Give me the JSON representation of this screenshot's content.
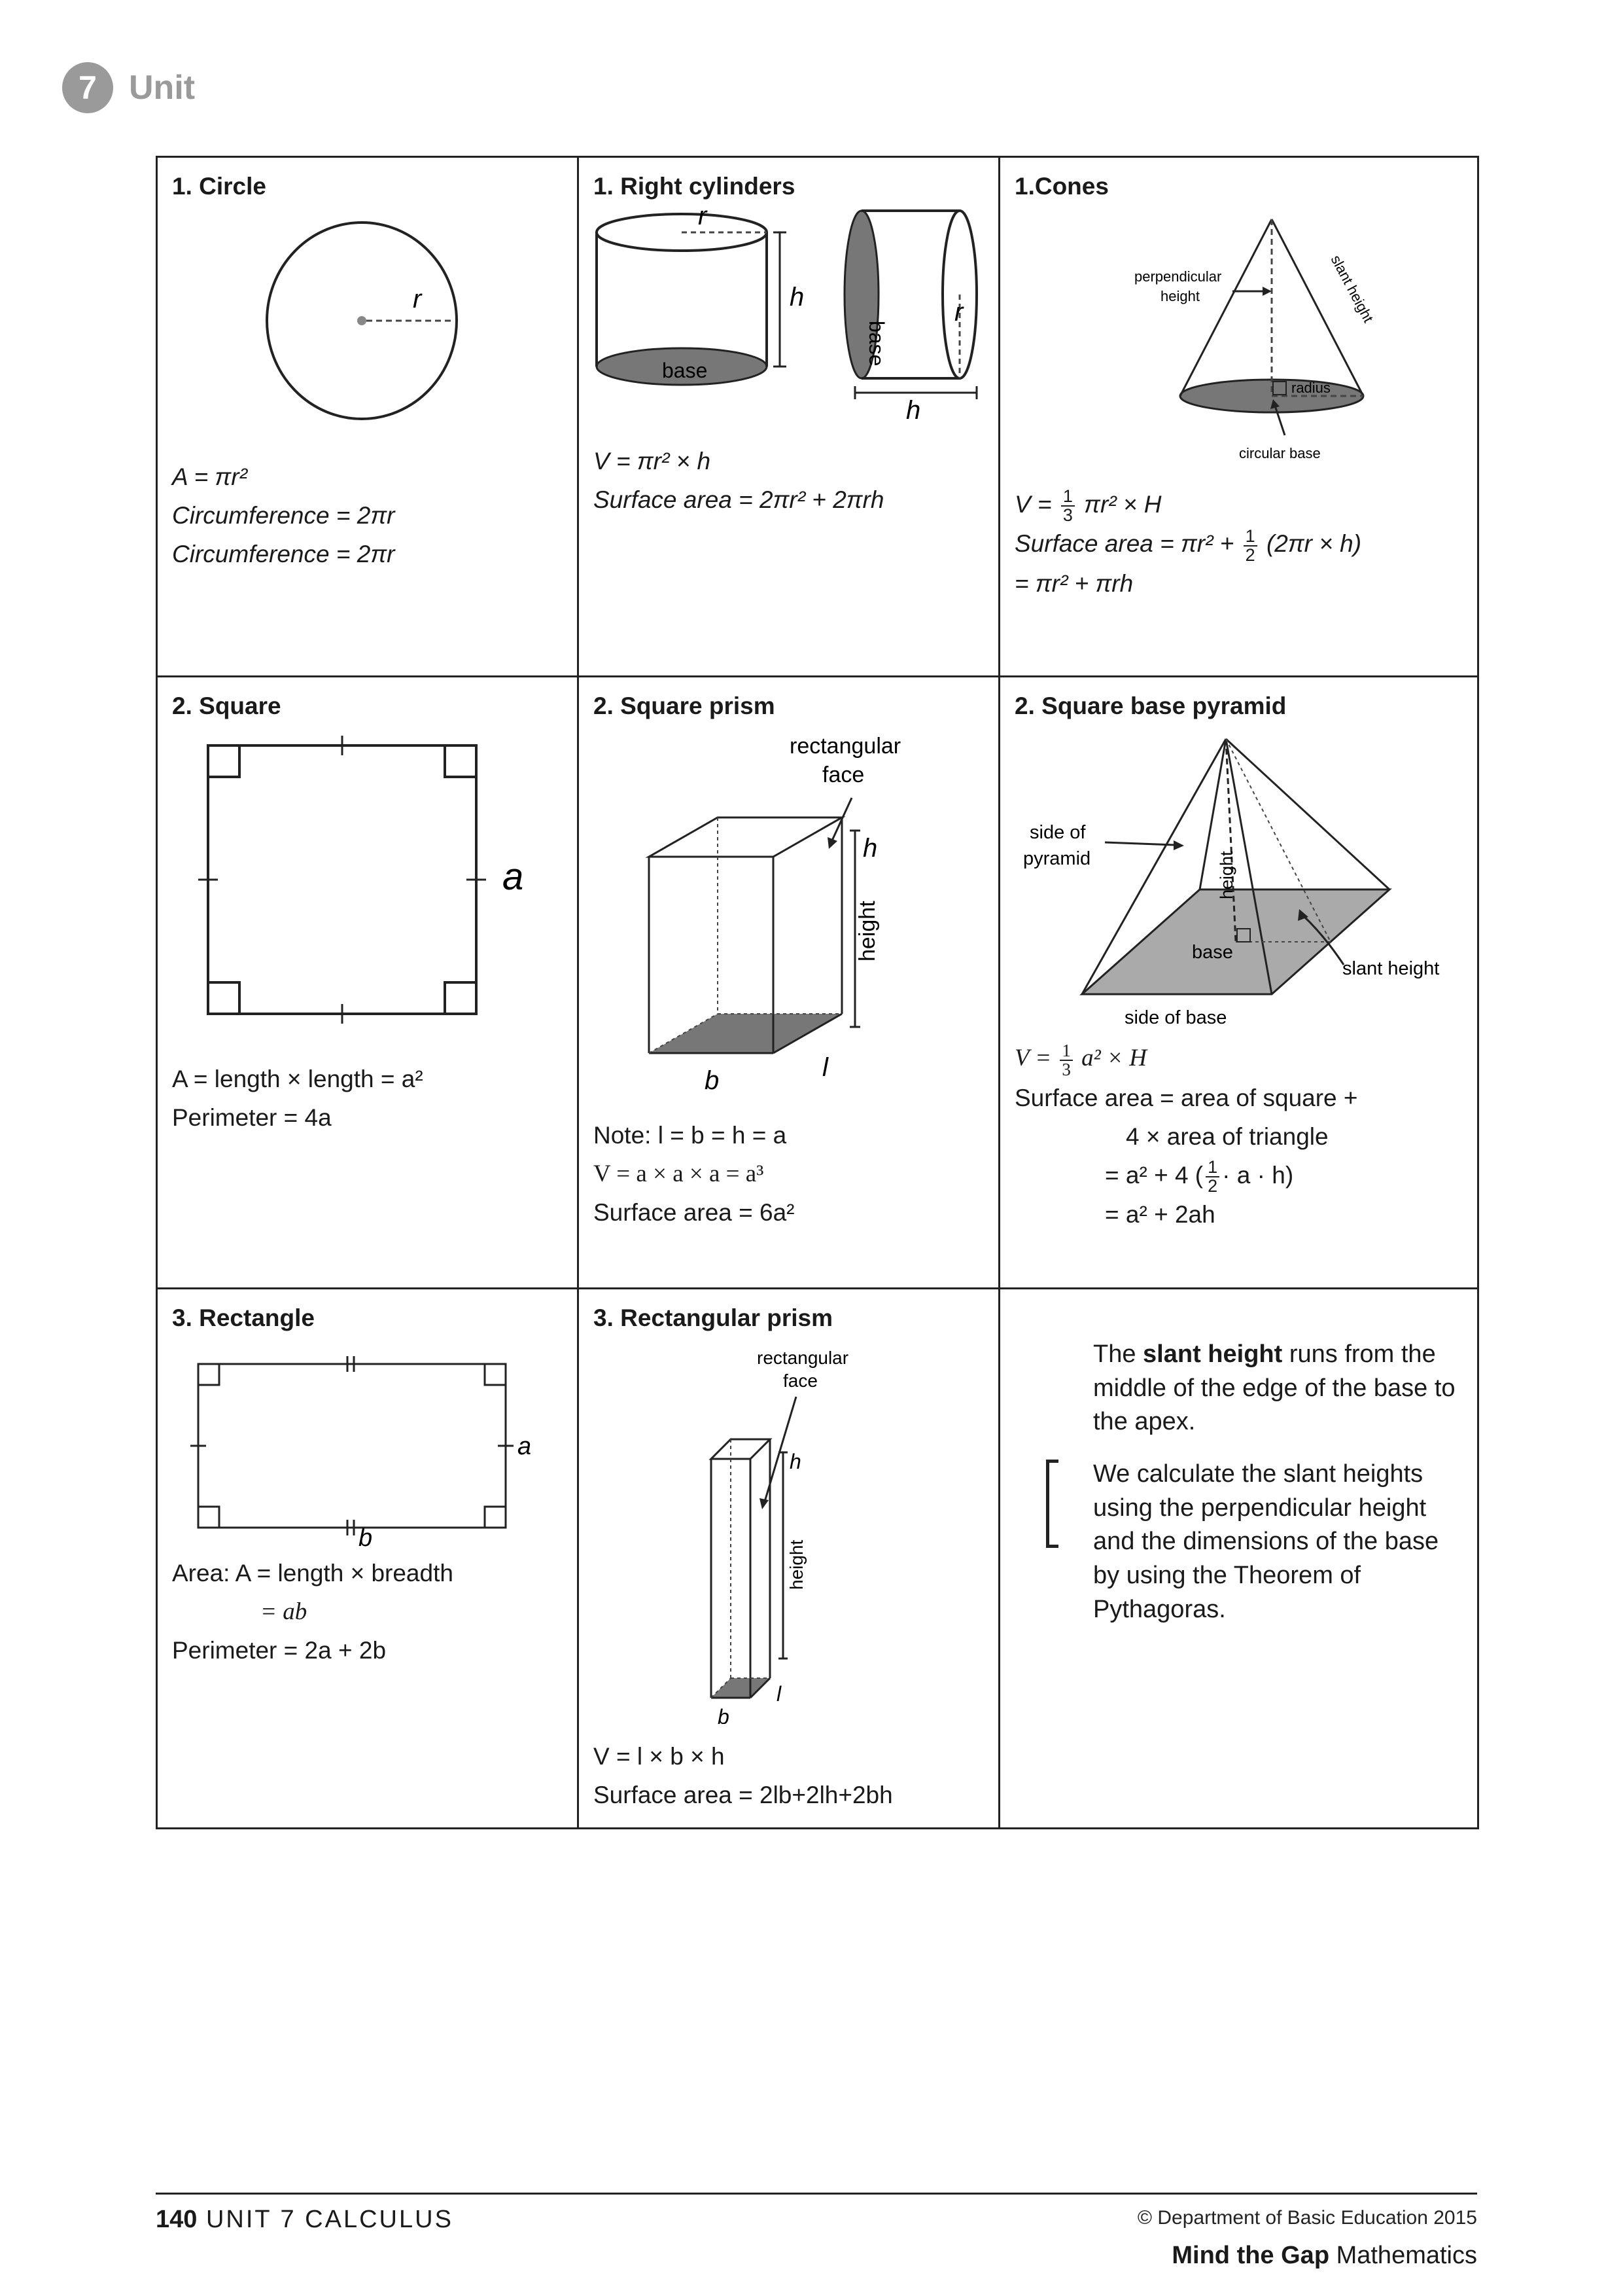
{
  "header": {
    "unit_number": "7",
    "unit_label": "Unit"
  },
  "cells": {
    "circle": {
      "title": "1. Circle",
      "label_r": "r",
      "f1": "A = πr²",
      "f2": "Circumference = 2πr",
      "f3": "Circumference = 2πr"
    },
    "cylinder": {
      "title": "1. Right cylinders",
      "label_r": "r",
      "label_h": "h",
      "label_base": "base",
      "label_base2": "base",
      "label_r2": "r",
      "label_h2": "h",
      "f1": "V = πr² × h",
      "f2": "Surface area = 2πr² + 2πrh"
    },
    "cone": {
      "title": "1.Cones",
      "label_perp1": "perpendicular",
      "label_perp2": "height",
      "label_slant": "slant height",
      "label_radius": "radius",
      "label_base": "circular base",
      "f1_a": "V =",
      "f1_num": "1",
      "f1_den": "3",
      "f1_b": "πr² × H",
      "f2_a": "Surface area = πr² +",
      "f2_num": "1",
      "f2_den": "2",
      "f2_b": "(2πr × h)",
      "f3": "= πr² + πrh"
    },
    "square": {
      "title": "2. Square",
      "label_a": "a",
      "f1": "A = length × length = a²",
      "f2": "Perimeter = 4a"
    },
    "square_prism": {
      "title": "2. Square prism",
      "label_face1": "rectangular",
      "label_face2": "face",
      "label_h": "h",
      "label_height": "height",
      "label_l": "l",
      "label_b": "b",
      "f1": "Note: l = b = h = a",
      "f2": "V = a × a × a = a³",
      "f3": "Surface area = 6a²"
    },
    "pyramid": {
      "title": "2. Square base pyramid",
      "label_side1": "side of",
      "label_side2": "pyramid",
      "label_height": "height",
      "label_base": "base",
      "label_slant": "slant height",
      "label_sidebase": "side of base",
      "f1_a": "V =",
      "f1_num": "1",
      "f1_den": "3",
      "f1_b": "a² × H",
      "f2": "Surface area = area of square +",
      "f3": "4 × area of triangle",
      "f4_a": "= a² + 4",
      "f4_num": "1",
      "f4_den": "2",
      "f4_b": "· a · h",
      "f5": "= a² + 2ah"
    },
    "rectangle": {
      "title": "3. Rectangle",
      "label_a": "a",
      "label_b": "b",
      "f1": "Area: A = length × breadth",
      "f2": "= ab",
      "f3": "Perimeter = 2a + 2b"
    },
    "rect_prism": {
      "title": "3. Rectangular prism",
      "label_face1": "rectangular",
      "label_face2": "face",
      "label_h": "h",
      "label_height": "height",
      "label_l": "l",
      "label_b": "b",
      "f1": "V = l × b × h",
      "f2": "Surface area = 2lb+2lh+2bh"
    },
    "note": {
      "p1_a": "The ",
      "p1_bold": "slant height",
      "p1_b": " runs from the middle of the edge of the base to the apex.",
      "p2": "We calculate the slant heights using the perpendicular height and the dimensions of the base by using the Theorem of Pythagoras."
    }
  },
  "footer": {
    "page_number": "140",
    "section": "UNIT 7 CALCULUS",
    "copyright": "© Department of Basic Education 2015",
    "brand_bold": "Mind the Gap",
    "brand_rest": " Mathematics"
  }
}
